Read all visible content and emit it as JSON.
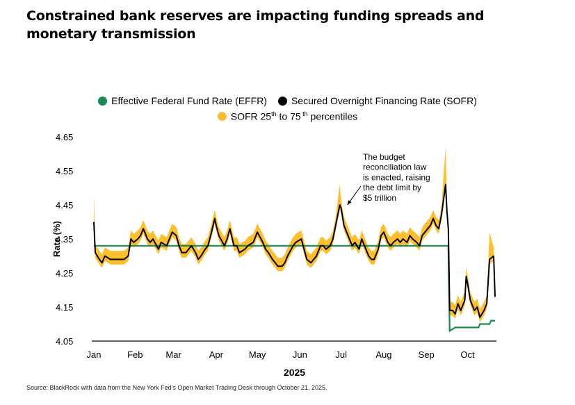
{
  "title": "Constrained bank reserves are impacting funding spreads and monetary transmission",
  "source": "Source: BlackRock with data from the New York Fed’s Open Market Trading Desk through October 21, 2025.",
  "legend": {
    "effr": "Effective  Federal Fund Rate (EFFR)",
    "sofr": "Secured Overnight Financing Rate (SOFR)",
    "band_prefix": "SOFR 25",
    "band_sup1": "th",
    "band_mid": " to 75",
    "band_sup2": " th",
    "band_suffix": " percentiles"
  },
  "colors": {
    "effr": "#1a8a52",
    "sofr": "#000000",
    "band": "#fdbf2e",
    "axis": "#000000"
  },
  "chart_data": {
    "type": "line",
    "title": "Constrained bank reserves are impacting funding spreads and monetary transmission",
    "xlabel": "2025",
    "ylabel": "Rate (%)",
    "ylim": [
      4.05,
      4.65
    ],
    "yticks": [
      4.05,
      4.15,
      4.25,
      4.35,
      4.45,
      4.55,
      4.65
    ],
    "xlim": [
      "2025-01-02",
      "2025-10-21"
    ],
    "x_tick_labels": [
      "Jan",
      "Feb",
      "Mar",
      "Apr",
      "May",
      "Jun",
      "Jul",
      "Aug",
      "Sep",
      "Oct"
    ],
    "x_tick_dates": [
      "2025-01-02",
      "2025-02-01",
      "2025-03-01",
      "2025-04-01",
      "2025-05-01",
      "2025-06-01",
      "2025-07-01",
      "2025-08-01",
      "2025-09-01",
      "2025-10-01"
    ],
    "annotation": {
      "text": [
        "The budget",
        "reconciliation law",
        "is enacted, raising",
        "the debt limit by",
        "$5 trillion"
      ],
      "date": "2025-07-04",
      "value": 4.44
    },
    "series": [
      {
        "name": "Effective  Federal Fund Rate (EFFR)",
        "type": "step",
        "points": [
          [
            "2025-01-02",
            4.33
          ],
          [
            "2025-09-17",
            4.33
          ],
          [
            "2025-09-18",
            4.08
          ],
          [
            "2025-09-22",
            4.09
          ],
          [
            "2025-10-09",
            4.09
          ],
          [
            "2025-10-10",
            4.1
          ],
          [
            "2025-10-17",
            4.1
          ],
          [
            "2025-10-18",
            4.11
          ],
          [
            "2025-10-21",
            4.11
          ]
        ]
      },
      {
        "name": "Secured Overnight Financing Rate (SOFR)",
        "type": "line",
        "points": [
          [
            "2025-01-02",
            4.4
          ],
          [
            "2025-01-03",
            4.31
          ],
          [
            "2025-01-06",
            4.29
          ],
          [
            "2025-01-08",
            4.28
          ],
          [
            "2025-01-10",
            4.3
          ],
          [
            "2025-01-14",
            4.29
          ],
          [
            "2025-01-17",
            4.29
          ],
          [
            "2025-01-21",
            4.29
          ],
          [
            "2025-01-24",
            4.29
          ],
          [
            "2025-01-27",
            4.3
          ],
          [
            "2025-01-29",
            4.35
          ],
          [
            "2025-01-31",
            4.34
          ],
          [
            "2025-02-03",
            4.35
          ],
          [
            "2025-02-05",
            4.36
          ],
          [
            "2025-02-07",
            4.38
          ],
          [
            "2025-02-10",
            4.35
          ],
          [
            "2025-02-12",
            4.34
          ],
          [
            "2025-02-14",
            4.35
          ],
          [
            "2025-02-18",
            4.32
          ],
          [
            "2025-02-20",
            4.34
          ],
          [
            "2025-02-24",
            4.33
          ],
          [
            "2025-02-26",
            4.35
          ],
          [
            "2025-02-28",
            4.37
          ],
          [
            "2025-03-03",
            4.36
          ],
          [
            "2025-03-05",
            4.33
          ],
          [
            "2025-03-07",
            4.31
          ],
          [
            "2025-03-10",
            4.31
          ],
          [
            "2025-03-12",
            4.32
          ],
          [
            "2025-03-14",
            4.33
          ],
          [
            "2025-03-17",
            4.31
          ],
          [
            "2025-03-19",
            4.29
          ],
          [
            "2025-03-21",
            4.3
          ],
          [
            "2025-03-24",
            4.32
          ],
          [
            "2025-03-26",
            4.33
          ],
          [
            "2025-03-28",
            4.36
          ],
          [
            "2025-03-31",
            4.41
          ],
          [
            "2025-04-01",
            4.39
          ],
          [
            "2025-04-03",
            4.36
          ],
          [
            "2025-04-07",
            4.33
          ],
          [
            "2025-04-09",
            4.35
          ],
          [
            "2025-04-11",
            4.38
          ],
          [
            "2025-04-14",
            4.33
          ],
          [
            "2025-04-16",
            4.33
          ],
          [
            "2025-04-18",
            4.31
          ],
          [
            "2025-04-22",
            4.32
          ],
          [
            "2025-04-24",
            4.33
          ],
          [
            "2025-04-28",
            4.34
          ],
          [
            "2025-04-30",
            4.36
          ],
          [
            "2025-05-01",
            4.37
          ],
          [
            "2025-05-05",
            4.34
          ],
          [
            "2025-05-07",
            4.32
          ],
          [
            "2025-05-09",
            4.31
          ],
          [
            "2025-05-12",
            4.29
          ],
          [
            "2025-05-14",
            4.28
          ],
          [
            "2025-05-16",
            4.27
          ],
          [
            "2025-05-19",
            4.27
          ],
          [
            "2025-05-21",
            4.28
          ],
          [
            "2025-05-23",
            4.3
          ],
          [
            "2025-05-27",
            4.33
          ],
          [
            "2025-05-29",
            4.34
          ],
          [
            "2025-06-02",
            4.35
          ],
          [
            "2025-06-04",
            4.32
          ],
          [
            "2025-06-06",
            4.29
          ],
          [
            "2025-06-09",
            4.28
          ],
          [
            "2025-06-11",
            4.29
          ],
          [
            "2025-06-13",
            4.3
          ],
          [
            "2025-06-16",
            4.33
          ],
          [
            "2025-06-18",
            4.33
          ],
          [
            "2025-06-20",
            4.32
          ],
          [
            "2025-06-23",
            4.33
          ],
          [
            "2025-06-25",
            4.35
          ],
          [
            "2025-06-27",
            4.39
          ],
          [
            "2025-06-30",
            4.45
          ],
          [
            "2025-07-01",
            4.44
          ],
          [
            "2025-07-03",
            4.39
          ],
          [
            "2025-07-07",
            4.35
          ],
          [
            "2025-07-09",
            4.33
          ],
          [
            "2025-07-11",
            4.34
          ],
          [
            "2025-07-14",
            4.32
          ],
          [
            "2025-07-16",
            4.35
          ],
          [
            "2025-07-18",
            4.33
          ],
          [
            "2025-07-21",
            4.3
          ],
          [
            "2025-07-23",
            4.29
          ],
          [
            "2025-07-25",
            4.29
          ],
          [
            "2025-07-28",
            4.32
          ],
          [
            "2025-07-30",
            4.36
          ],
          [
            "2025-08-01",
            4.37
          ],
          [
            "2025-08-04",
            4.34
          ],
          [
            "2025-08-06",
            4.33
          ],
          [
            "2025-08-08",
            4.34
          ],
          [
            "2025-08-11",
            4.35
          ],
          [
            "2025-08-13",
            4.34
          ],
          [
            "2025-08-15",
            4.35
          ],
          [
            "2025-08-18",
            4.34
          ],
          [
            "2025-08-20",
            4.36
          ],
          [
            "2025-08-22",
            4.35
          ],
          [
            "2025-08-25",
            4.34
          ],
          [
            "2025-08-27",
            4.33
          ],
          [
            "2025-08-29",
            4.36
          ],
          [
            "2025-09-02",
            4.38
          ],
          [
            "2025-09-04",
            4.39
          ],
          [
            "2025-09-06",
            4.41
          ],
          [
            "2025-09-08",
            4.39
          ],
          [
            "2025-09-10",
            4.38
          ],
          [
            "2025-09-12",
            4.42
          ],
          [
            "2025-09-15",
            4.51
          ],
          [
            "2025-09-16",
            4.43
          ],
          [
            "2025-09-17",
            4.38
          ],
          [
            "2025-09-18",
            4.14
          ],
          [
            "2025-09-20",
            4.14
          ],
          [
            "2025-09-22",
            4.13
          ],
          [
            "2025-09-24",
            4.16
          ],
          [
            "2025-09-26",
            4.14
          ],
          [
            "2025-09-29",
            4.17
          ],
          [
            "2025-09-30",
            4.24
          ],
          [
            "2025-10-01",
            4.22
          ],
          [
            "2025-10-03",
            4.17
          ],
          [
            "2025-10-06",
            4.14
          ],
          [
            "2025-10-08",
            4.15
          ],
          [
            "2025-10-10",
            4.12
          ],
          [
            "2025-10-13",
            4.14
          ],
          [
            "2025-10-15",
            4.16
          ],
          [
            "2025-10-17",
            4.29
          ],
          [
            "2025-10-20",
            4.3
          ],
          [
            "2025-10-21",
            4.18
          ]
        ]
      },
      {
        "name": "SOFR 25th to 75 th percentiles",
        "type": "band",
        "upper_offset": 0.025,
        "lower_offset": 0.015,
        "spikes": [
          [
            "2025-01-02",
            4.48
          ],
          [
            "2025-06-30",
            4.51
          ],
          [
            "2025-09-15",
            4.62
          ],
          [
            "2025-10-17",
            4.37
          ]
        ]
      }
    ]
  }
}
